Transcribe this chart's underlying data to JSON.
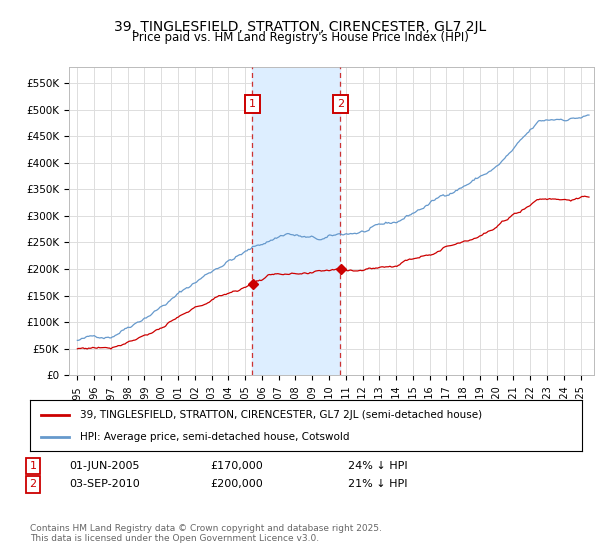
{
  "title": "39, TINGLESFIELD, STRATTON, CIRENCESTER, GL7 2JL",
  "subtitle": "Price paid vs. HM Land Registry's House Price Index (HPI)",
  "legend_property": "39, TINGLESFIELD, STRATTON, CIRENCESTER, GL7 2JL (semi-detached house)",
  "legend_hpi": "HPI: Average price, semi-detached house, Cotswold",
  "footer": "Contains HM Land Registry data © Crown copyright and database right 2025.\nThis data is licensed under the Open Government Licence v3.0.",
  "sale1_date": "01-JUN-2005",
  "sale1_price": 170000,
  "sale1_pct": "24%",
  "sale2_date": "03-SEP-2010",
  "sale2_price": 200000,
  "sale2_pct": "21%",
  "property_color": "#cc0000",
  "hpi_color": "#6699cc",
  "shaded_color": "#ddeeff",
  "sale1_x_year": 2005.42,
  "sale2_x_year": 2010.67,
  "ylim_min": 0,
  "ylim_max": 580000,
  "yticks": [
    0,
    50000,
    100000,
    150000,
    200000,
    250000,
    300000,
    350000,
    400000,
    450000,
    500000,
    550000
  ],
  "xlim_min": 1994.5,
  "xlim_max": 2025.8,
  "background_color": "#ffffff",
  "grid_color": "#dddddd"
}
